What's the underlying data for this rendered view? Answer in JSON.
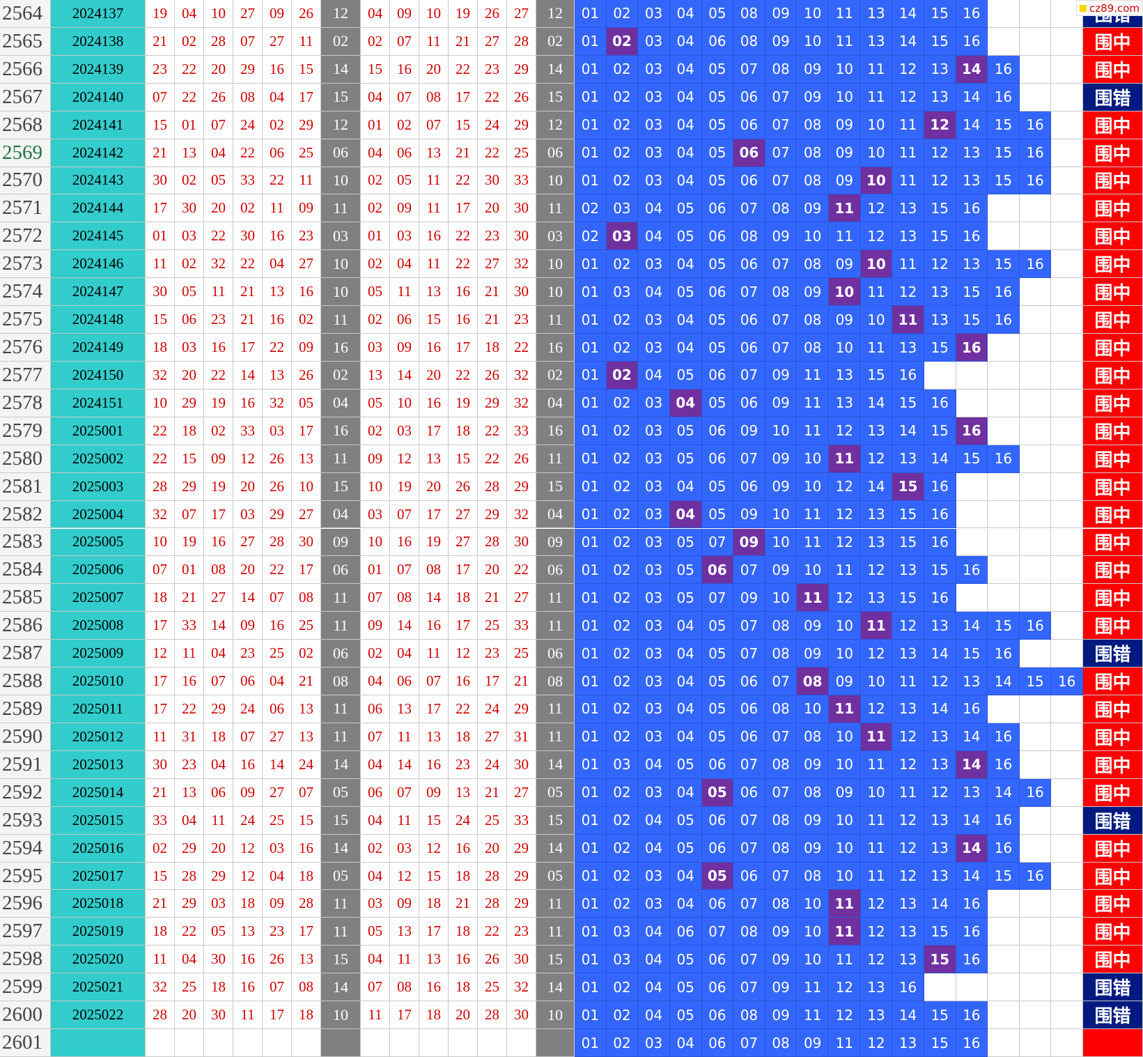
{
  "watermark": "cz89.com",
  "rows": [
    {
      "no": "2564",
      "issue": "2024137",
      "draw": [
        "19",
        "04",
        "10",
        "27",
        "09",
        "26"
      ],
      "key": "12",
      "sorted": [
        "04",
        "09",
        "10",
        "19",
        "26",
        "27"
      ],
      "pool": [
        "01",
        "02",
        "03",
        "04",
        "05",
        "08",
        "09",
        "10",
        "11",
        "13",
        "14",
        "15",
        "16"
      ],
      "result": "围错"
    },
    {
      "no": "2565",
      "issue": "2024138",
      "draw": [
        "21",
        "02",
        "28",
        "07",
        "27",
        "11"
      ],
      "key": "02",
      "sorted": [
        "02",
        "07",
        "11",
        "21",
        "27",
        "28"
      ],
      "pool": [
        "01",
        "02",
        "03",
        "04",
        "06",
        "08",
        "09",
        "10",
        "11",
        "13",
        "14",
        "15",
        "16"
      ],
      "result": "围中"
    },
    {
      "no": "2566",
      "issue": "2024139",
      "draw": [
        "23",
        "22",
        "20",
        "29",
        "16",
        "15"
      ],
      "key": "14",
      "sorted": [
        "15",
        "16",
        "20",
        "22",
        "23",
        "29"
      ],
      "pool": [
        "01",
        "02",
        "03",
        "04",
        "05",
        "07",
        "08",
        "09",
        "10",
        "11",
        "12",
        "13",
        "14",
        "16"
      ],
      "result": "围中"
    },
    {
      "no": "2567",
      "issue": "2024140",
      "draw": [
        "07",
        "22",
        "26",
        "08",
        "04",
        "17"
      ],
      "key": "15",
      "sorted": [
        "04",
        "07",
        "08",
        "17",
        "22",
        "26"
      ],
      "pool": [
        "01",
        "02",
        "03",
        "04",
        "05",
        "06",
        "07",
        "09",
        "10",
        "11",
        "12",
        "13",
        "14",
        "16"
      ],
      "result": "围错"
    },
    {
      "no": "2568",
      "issue": "2024141",
      "draw": [
        "15",
        "01",
        "07",
        "24",
        "02",
        "29"
      ],
      "key": "12",
      "sorted": [
        "01",
        "02",
        "07",
        "15",
        "24",
        "29"
      ],
      "pool": [
        "01",
        "02",
        "03",
        "04",
        "05",
        "06",
        "07",
        "08",
        "09",
        "10",
        "11",
        "12",
        "14",
        "15",
        "16"
      ],
      "result": "围中"
    },
    {
      "no": "2569",
      "issue": "2024142",
      "draw": [
        "21",
        "13",
        "04",
        "22",
        "06",
        "25"
      ],
      "key": "06",
      "sorted": [
        "04",
        "06",
        "13",
        "21",
        "22",
        "25"
      ],
      "pool": [
        "01",
        "02",
        "03",
        "04",
        "05",
        "06",
        "07",
        "08",
        "09",
        "10",
        "11",
        "12",
        "13",
        "15",
        "16"
      ],
      "result": "围中"
    },
    {
      "no": "2570",
      "issue": "2024143",
      "draw": [
        "30",
        "02",
        "05",
        "33",
        "22",
        "11"
      ],
      "key": "10",
      "sorted": [
        "02",
        "05",
        "11",
        "22",
        "30",
        "33"
      ],
      "pool": [
        "01",
        "02",
        "03",
        "04",
        "05",
        "06",
        "07",
        "08",
        "09",
        "10",
        "11",
        "12",
        "13",
        "15",
        "16"
      ],
      "result": "围中"
    },
    {
      "no": "2571",
      "issue": "2024144",
      "draw": [
        "17",
        "30",
        "20",
        "02",
        "11",
        "09"
      ],
      "key": "11",
      "sorted": [
        "02",
        "09",
        "11",
        "17",
        "20",
        "30"
      ],
      "pool": [
        "02",
        "03",
        "04",
        "05",
        "06",
        "07",
        "08",
        "09",
        "11",
        "12",
        "13",
        "15",
        "16"
      ],
      "result": "围中"
    },
    {
      "no": "2572",
      "issue": "2024145",
      "draw": [
        "01",
        "03",
        "22",
        "30",
        "16",
        "23"
      ],
      "key": "03",
      "sorted": [
        "01",
        "03",
        "16",
        "22",
        "23",
        "30"
      ],
      "pool": [
        "02",
        "03",
        "04",
        "05",
        "06",
        "08",
        "09",
        "10",
        "11",
        "12",
        "13",
        "15",
        "16"
      ],
      "result": "围中"
    },
    {
      "no": "2573",
      "issue": "2024146",
      "draw": [
        "11",
        "02",
        "32",
        "22",
        "04",
        "27"
      ],
      "key": "10",
      "sorted": [
        "02",
        "04",
        "11",
        "22",
        "27",
        "32"
      ],
      "pool": [
        "01",
        "02",
        "03",
        "04",
        "05",
        "06",
        "07",
        "08",
        "09",
        "10",
        "11",
        "12",
        "13",
        "15",
        "16"
      ],
      "result": "围中"
    },
    {
      "no": "2574",
      "issue": "2024147",
      "draw": [
        "30",
        "05",
        "11",
        "21",
        "13",
        "16"
      ],
      "key": "10",
      "sorted": [
        "05",
        "11",
        "13",
        "16",
        "21",
        "30"
      ],
      "pool": [
        "01",
        "03",
        "04",
        "05",
        "06",
        "07",
        "08",
        "09",
        "10",
        "11",
        "12",
        "13",
        "15",
        "16"
      ],
      "result": "围中"
    },
    {
      "no": "2575",
      "issue": "2024148",
      "draw": [
        "15",
        "06",
        "23",
        "21",
        "16",
        "02"
      ],
      "key": "11",
      "sorted": [
        "02",
        "06",
        "15",
        "16",
        "21",
        "23"
      ],
      "pool": [
        "01",
        "02",
        "03",
        "04",
        "05",
        "06",
        "07",
        "08",
        "09",
        "10",
        "11",
        "13",
        "15",
        "16"
      ],
      "result": "围中"
    },
    {
      "no": "2576",
      "issue": "2024149",
      "draw": [
        "18",
        "03",
        "16",
        "17",
        "22",
        "09"
      ],
      "key": "16",
      "sorted": [
        "03",
        "09",
        "16",
        "17",
        "18",
        "22"
      ],
      "pool": [
        "01",
        "02",
        "03",
        "04",
        "05",
        "06",
        "07",
        "08",
        "10",
        "11",
        "13",
        "15",
        "16"
      ],
      "result": "围中"
    },
    {
      "no": "2577",
      "issue": "2024150",
      "draw": [
        "32",
        "20",
        "22",
        "14",
        "13",
        "26"
      ],
      "key": "02",
      "sorted": [
        "13",
        "14",
        "20",
        "22",
        "26",
        "32"
      ],
      "pool": [
        "01",
        "02",
        "04",
        "05",
        "06",
        "07",
        "09",
        "11",
        "13",
        "15",
        "16"
      ],
      "result": "围中"
    },
    {
      "no": "2578",
      "issue": "2024151",
      "draw": [
        "10",
        "29",
        "19",
        "16",
        "32",
        "05"
      ],
      "key": "04",
      "sorted": [
        "05",
        "10",
        "16",
        "19",
        "29",
        "32"
      ],
      "pool": [
        "01",
        "02",
        "03",
        "04",
        "05",
        "06",
        "09",
        "11",
        "13",
        "14",
        "15",
        "16"
      ],
      "result": "围中"
    },
    {
      "no": "2579",
      "issue": "2025001",
      "draw": [
        "22",
        "18",
        "02",
        "33",
        "03",
        "17"
      ],
      "key": "16",
      "sorted": [
        "02",
        "03",
        "17",
        "18",
        "22",
        "33"
      ],
      "pool": [
        "01",
        "02",
        "03",
        "05",
        "06",
        "09",
        "10",
        "11",
        "12",
        "13",
        "14",
        "15",
        "16"
      ],
      "result": "围中"
    },
    {
      "no": "2580",
      "issue": "2025002",
      "draw": [
        "22",
        "15",
        "09",
        "12",
        "26",
        "13"
      ],
      "key": "11",
      "sorted": [
        "09",
        "12",
        "13",
        "15",
        "22",
        "26"
      ],
      "pool": [
        "01",
        "02",
        "03",
        "05",
        "06",
        "07",
        "09",
        "10",
        "11",
        "12",
        "13",
        "14",
        "15",
        "16"
      ],
      "result": "围中"
    },
    {
      "no": "2581",
      "issue": "2025003",
      "draw": [
        "28",
        "29",
        "19",
        "20",
        "26",
        "10"
      ],
      "key": "15",
      "sorted": [
        "10",
        "19",
        "20",
        "26",
        "28",
        "29"
      ],
      "pool": [
        "01",
        "02",
        "03",
        "04",
        "05",
        "06",
        "09",
        "10",
        "12",
        "14",
        "15",
        "16"
      ],
      "result": "围中"
    },
    {
      "no": "2582",
      "issue": "2025004",
      "draw": [
        "32",
        "07",
        "17",
        "03",
        "29",
        "27"
      ],
      "key": "04",
      "sorted": [
        "03",
        "07",
        "17",
        "27",
        "29",
        "32"
      ],
      "pool": [
        "01",
        "02",
        "03",
        "04",
        "05",
        "09",
        "10",
        "11",
        "12",
        "13",
        "15",
        "16"
      ],
      "result": "围中"
    },
    {
      "no": "2583",
      "issue": "2025005",
      "draw": [
        "10",
        "19",
        "16",
        "27",
        "28",
        "30"
      ],
      "key": "09",
      "sorted": [
        "10",
        "16",
        "19",
        "27",
        "28",
        "30"
      ],
      "pool": [
        "01",
        "02",
        "03",
        "05",
        "07",
        "09",
        "10",
        "11",
        "12",
        "13",
        "15",
        "16"
      ],
      "result": "围中"
    },
    {
      "no": "2584",
      "issue": "2025006",
      "draw": [
        "07",
        "01",
        "08",
        "20",
        "22",
        "17"
      ],
      "key": "06",
      "sorted": [
        "01",
        "07",
        "08",
        "17",
        "20",
        "22"
      ],
      "pool": [
        "01",
        "02",
        "03",
        "05",
        "06",
        "07",
        "09",
        "10",
        "11",
        "12",
        "13",
        "15",
        "16"
      ],
      "result": "围中"
    },
    {
      "no": "2585",
      "issue": "2025007",
      "draw": [
        "18",
        "21",
        "27",
        "14",
        "07",
        "08"
      ],
      "key": "11",
      "sorted": [
        "07",
        "08",
        "14",
        "18",
        "21",
        "27"
      ],
      "pool": [
        "01",
        "02",
        "03",
        "05",
        "07",
        "09",
        "10",
        "11",
        "12",
        "13",
        "15",
        "16"
      ],
      "result": "围中"
    },
    {
      "no": "2586",
      "issue": "2025008",
      "draw": [
        "17",
        "33",
        "14",
        "09",
        "16",
        "25"
      ],
      "key": "11",
      "sorted": [
        "09",
        "14",
        "16",
        "17",
        "25",
        "33"
      ],
      "pool": [
        "01",
        "02",
        "03",
        "04",
        "05",
        "07",
        "08",
        "09",
        "10",
        "11",
        "12",
        "13",
        "14",
        "15",
        "16"
      ],
      "result": "围中"
    },
    {
      "no": "2587",
      "issue": "2025009",
      "draw": [
        "12",
        "11",
        "04",
        "23",
        "25",
        "02"
      ],
      "key": "06",
      "sorted": [
        "02",
        "04",
        "11",
        "12",
        "23",
        "25"
      ],
      "pool": [
        "01",
        "02",
        "03",
        "04",
        "05",
        "07",
        "08",
        "09",
        "10",
        "12",
        "13",
        "14",
        "15",
        "16"
      ],
      "result": "围错"
    },
    {
      "no": "2588",
      "issue": "2025010",
      "draw": [
        "17",
        "16",
        "07",
        "06",
        "04",
        "21"
      ],
      "key": "08",
      "sorted": [
        "04",
        "06",
        "07",
        "16",
        "17",
        "21"
      ],
      "pool": [
        "01",
        "02",
        "03",
        "04",
        "05",
        "06",
        "07",
        "08",
        "09",
        "10",
        "11",
        "12",
        "13",
        "14",
        "15",
        "16"
      ],
      "result": "围中"
    },
    {
      "no": "2589",
      "issue": "2025011",
      "draw": [
        "17",
        "22",
        "29",
        "24",
        "06",
        "13"
      ],
      "key": "11",
      "sorted": [
        "06",
        "13",
        "17",
        "22",
        "24",
        "29"
      ],
      "pool": [
        "01",
        "02",
        "03",
        "04",
        "05",
        "06",
        "08",
        "10",
        "11",
        "12",
        "13",
        "14",
        "16"
      ],
      "result": "围中"
    },
    {
      "no": "2590",
      "issue": "2025012",
      "draw": [
        "11",
        "31",
        "18",
        "07",
        "27",
        "13"
      ],
      "key": "11",
      "sorted": [
        "07",
        "11",
        "13",
        "18",
        "27",
        "31"
      ],
      "pool": [
        "01",
        "02",
        "03",
        "04",
        "05",
        "06",
        "07",
        "08",
        "10",
        "11",
        "12",
        "13",
        "14",
        "16"
      ],
      "result": "围中"
    },
    {
      "no": "2591",
      "issue": "2025013",
      "draw": [
        "30",
        "23",
        "04",
        "16",
        "14",
        "24"
      ],
      "key": "14",
      "sorted": [
        "04",
        "14",
        "16",
        "23",
        "24",
        "30"
      ],
      "pool": [
        "01",
        "03",
        "04",
        "05",
        "06",
        "07",
        "08",
        "09",
        "10",
        "11",
        "12",
        "13",
        "14",
        "16"
      ],
      "result": "围中"
    },
    {
      "no": "2592",
      "issue": "2025014",
      "draw": [
        "21",
        "13",
        "06",
        "09",
        "27",
        "07"
      ],
      "key": "05",
      "sorted": [
        "06",
        "07",
        "09",
        "13",
        "21",
        "27"
      ],
      "pool": [
        "01",
        "02",
        "03",
        "04",
        "05",
        "06",
        "07",
        "08",
        "09",
        "10",
        "11",
        "12",
        "13",
        "14",
        "16"
      ],
      "result": "围中"
    },
    {
      "no": "2593",
      "issue": "2025015",
      "draw": [
        "33",
        "04",
        "11",
        "24",
        "25",
        "15"
      ],
      "key": "15",
      "sorted": [
        "04",
        "11",
        "15",
        "24",
        "25",
        "33"
      ],
      "pool": [
        "01",
        "02",
        "04",
        "05",
        "06",
        "07",
        "08",
        "09",
        "10",
        "11",
        "12",
        "13",
        "14",
        "16"
      ],
      "result": "围错"
    },
    {
      "no": "2594",
      "issue": "2025016",
      "draw": [
        "02",
        "29",
        "20",
        "12",
        "03",
        "16"
      ],
      "key": "14",
      "sorted": [
        "02",
        "03",
        "12",
        "16",
        "20",
        "29"
      ],
      "pool": [
        "01",
        "02",
        "04",
        "05",
        "06",
        "07",
        "08",
        "09",
        "10",
        "11",
        "12",
        "13",
        "14",
        "16"
      ],
      "result": "围中"
    },
    {
      "no": "2595",
      "issue": "2025017",
      "draw": [
        "15",
        "28",
        "29",
        "12",
        "04",
        "18"
      ],
      "key": "05",
      "sorted": [
        "04",
        "12",
        "15",
        "18",
        "28",
        "29"
      ],
      "pool": [
        "01",
        "02",
        "03",
        "04",
        "05",
        "06",
        "07",
        "08",
        "10",
        "11",
        "12",
        "13",
        "14",
        "15",
        "16"
      ],
      "result": "围中"
    },
    {
      "no": "2596",
      "issue": "2025018",
      "draw": [
        "21",
        "29",
        "03",
        "18",
        "09",
        "28"
      ],
      "key": "11",
      "sorted": [
        "03",
        "09",
        "18",
        "21",
        "28",
        "29"
      ],
      "pool": [
        "01",
        "02",
        "03",
        "04",
        "06",
        "07",
        "08",
        "10",
        "11",
        "12",
        "13",
        "14",
        "16"
      ],
      "result": "围中"
    },
    {
      "no": "2597",
      "issue": "2025019",
      "draw": [
        "18",
        "22",
        "05",
        "13",
        "23",
        "17"
      ],
      "key": "11",
      "sorted": [
        "05",
        "13",
        "17",
        "18",
        "22",
        "23"
      ],
      "pool": [
        "01",
        "03",
        "04",
        "06",
        "07",
        "08",
        "09",
        "10",
        "11",
        "12",
        "13",
        "15",
        "16"
      ],
      "result": "围中"
    },
    {
      "no": "2598",
      "issue": "2025020",
      "draw": [
        "11",
        "04",
        "30",
        "16",
        "26",
        "13"
      ],
      "key": "15",
      "sorted": [
        "04",
        "11",
        "13",
        "16",
        "26",
        "30"
      ],
      "pool": [
        "01",
        "03",
        "04",
        "05",
        "06",
        "07",
        "09",
        "10",
        "11",
        "12",
        "13",
        "15",
        "16"
      ],
      "result": "围中"
    },
    {
      "no": "2599",
      "issue": "2025021",
      "draw": [
        "32",
        "25",
        "18",
        "16",
        "07",
        "08"
      ],
      "key": "14",
      "sorted": [
        "07",
        "08",
        "16",
        "18",
        "25",
        "32"
      ],
      "pool": [
        "01",
        "02",
        "04",
        "05",
        "06",
        "07",
        "09",
        "11",
        "12",
        "13",
        "16"
      ],
      "result": "围错"
    },
    {
      "no": "2600",
      "issue": "2025022",
      "draw": [
        "28",
        "20",
        "30",
        "11",
        "17",
        "18"
      ],
      "key": "10",
      "sorted": [
        "11",
        "17",
        "18",
        "20",
        "28",
        "30"
      ],
      "pool": [
        "01",
        "02",
        "04",
        "05",
        "06",
        "08",
        "09",
        "11",
        "12",
        "13",
        "14",
        "15",
        "16"
      ],
      "result": "围错"
    },
    {
      "no": "2601",
      "pool": [
        "01",
        "02",
        "03",
        "04",
        "06",
        "07",
        "08",
        "09",
        "11",
        "12",
        "13",
        "15",
        "16"
      ]
    }
  ]
}
